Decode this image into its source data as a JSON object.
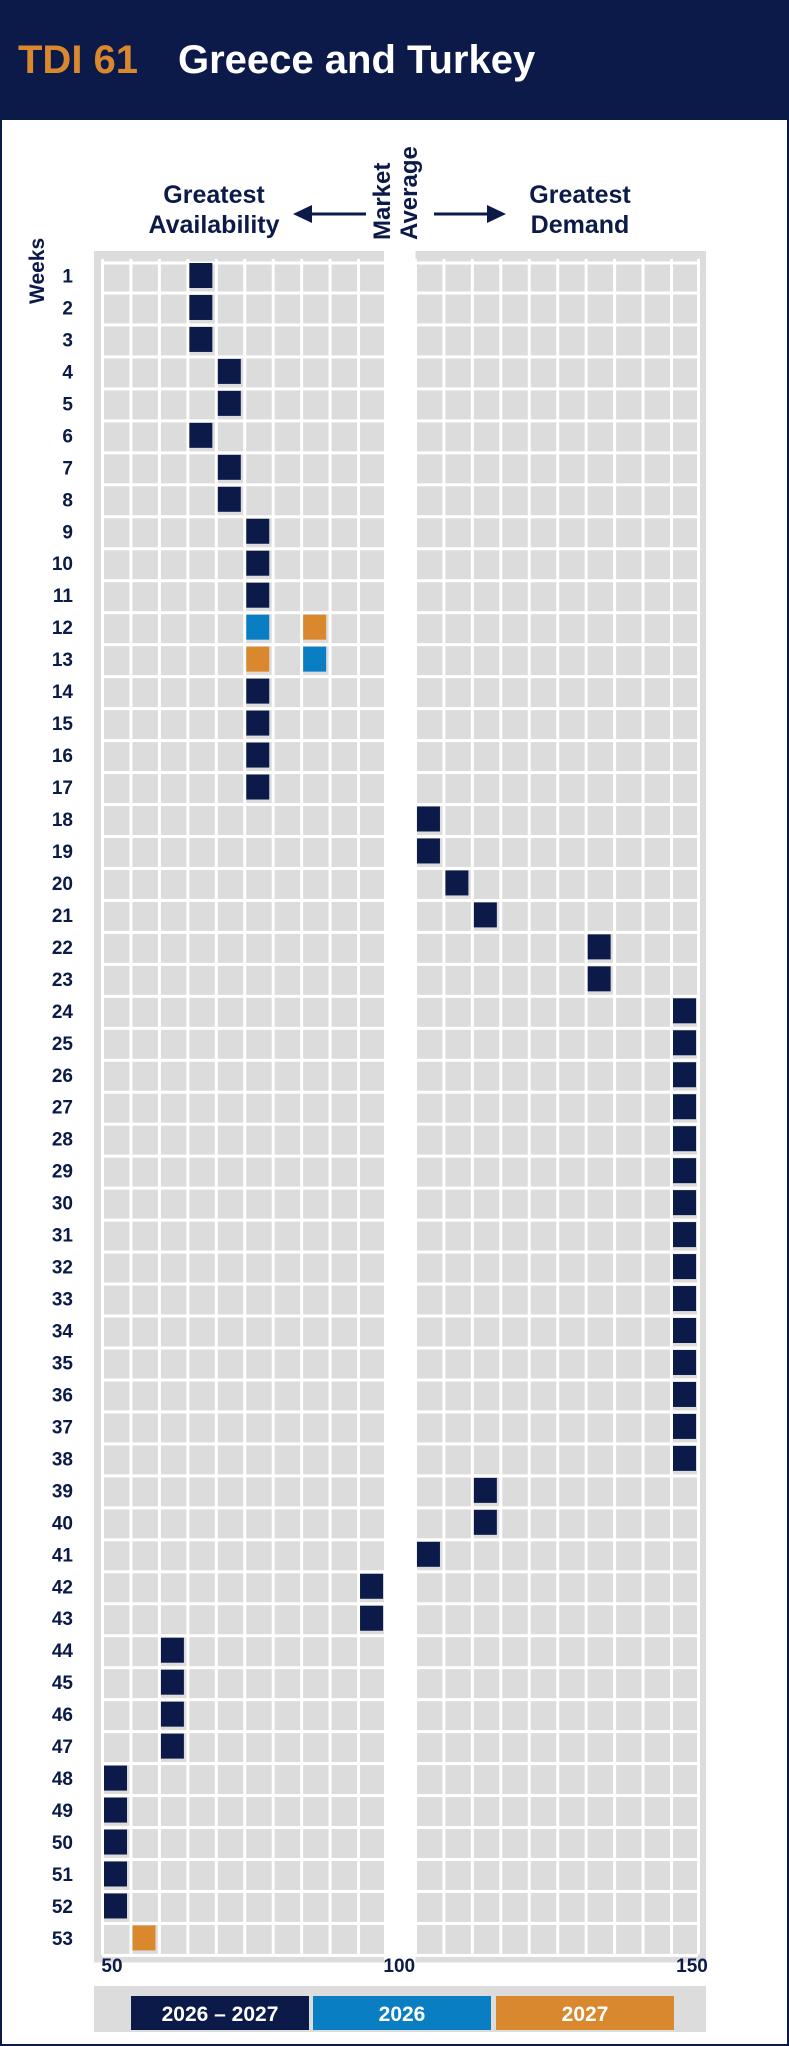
{
  "header": {
    "code": "TDI 61",
    "title": "Greece and Turkey"
  },
  "colors": {
    "navy": "#0b1a48",
    "blue": "#0a7ec2",
    "orange": "#d9882e",
    "cell": "#dcdcdc",
    "background": "#ffffff"
  },
  "chart_data": {
    "type": "heatmap",
    "left_label": [
      "Greatest",
      "Availability"
    ],
    "center_label": [
      "Market",
      "Average"
    ],
    "right_label": [
      "Greatest",
      "Demand"
    ],
    "ylabel": "Weeks",
    "x_ticks": [
      "50",
      "100",
      "150"
    ],
    "xlim": [
      50,
      150
    ],
    "columns": [
      51,
      56,
      61,
      66,
      71,
      76,
      81,
      86,
      91,
      96,
      106,
      111,
      116,
      121,
      126,
      131,
      136,
      141,
      146,
      151
    ],
    "weeks": [
      1,
      2,
      3,
      4,
      5,
      6,
      7,
      8,
      9,
      10,
      11,
      12,
      13,
      14,
      15,
      16,
      17,
      18,
      19,
      20,
      21,
      22,
      23,
      24,
      25,
      26,
      27,
      28,
      29,
      30,
      31,
      32,
      33,
      34,
      35,
      36,
      37,
      38,
      39,
      40,
      41,
      42,
      43,
      44,
      45,
      46,
      47,
      48,
      49,
      50,
      51,
      52,
      53
    ],
    "series": [
      {
        "name": "2026 – 2027",
        "color": "navy",
        "values": [
          66,
          66,
          66,
          71,
          71,
          66,
          71,
          71,
          76,
          76,
          76,
          null,
          null,
          76,
          76,
          76,
          76,
          106,
          106,
          111,
          116,
          136,
          136,
          151,
          151,
          151,
          151,
          151,
          151,
          151,
          151,
          151,
          151,
          151,
          151,
          151,
          151,
          151,
          116,
          116,
          106,
          101,
          96,
          61,
          61,
          61,
          61,
          51,
          51,
          51,
          51,
          51,
          null
        ]
      },
      {
        "name": "2026",
        "color": "blue",
        "values": [
          null,
          null,
          null,
          null,
          null,
          null,
          null,
          null,
          null,
          null,
          null,
          76,
          86,
          null,
          null,
          null,
          null,
          null,
          null,
          null,
          null,
          null,
          null,
          null,
          null,
          null,
          null,
          null,
          null,
          null,
          null,
          null,
          null,
          null,
          null,
          null,
          null,
          null,
          null,
          null,
          null,
          null,
          null,
          null,
          null,
          null,
          null,
          null,
          null,
          null,
          null,
          null,
          null
        ]
      },
      {
        "name": "2027",
        "color": "orange",
        "values": [
          null,
          null,
          null,
          null,
          null,
          null,
          null,
          null,
          null,
          null,
          null,
          86,
          76,
          null,
          null,
          null,
          null,
          null,
          null,
          null,
          null,
          null,
          null,
          null,
          null,
          null,
          null,
          null,
          null,
          null,
          null,
          null,
          null,
          null,
          null,
          null,
          null,
          null,
          null,
          null,
          null,
          null,
          null,
          null,
          null,
          null,
          null,
          null,
          null,
          null,
          null,
          null,
          56
        ]
      }
    ]
  }
}
